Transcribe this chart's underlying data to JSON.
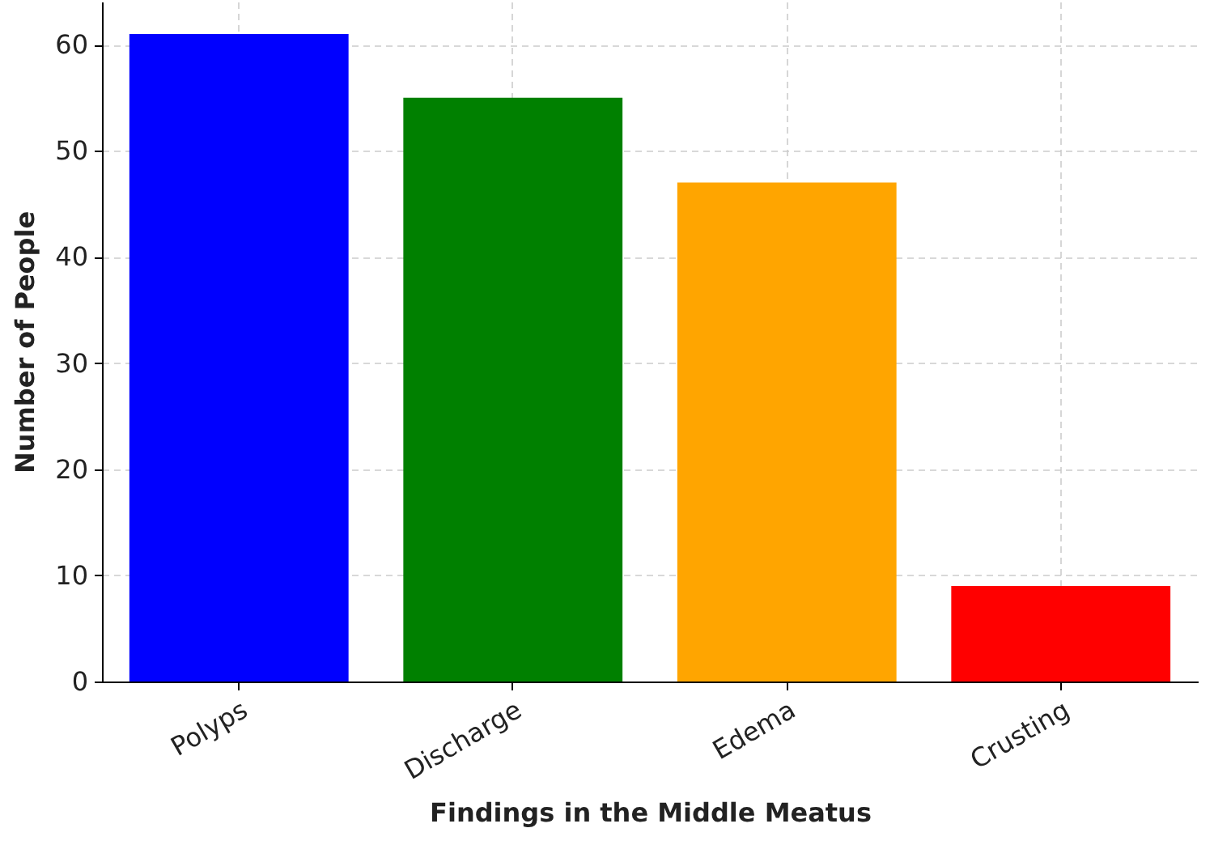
{
  "chart_data": {
    "type": "bar",
    "xlabel": "Findings in the Middle Meatus",
    "ylabel": "Number of People",
    "categories": [
      "Polyps",
      "Discharge",
      "Edema",
      "Crusting"
    ],
    "values": [
      61,
      55,
      47,
      9
    ],
    "colors": [
      "#0000ff",
      "#008000",
      "#ffa500",
      "#ff0000"
    ],
    "ylim": [
      0,
      64.05
    ],
    "yticks": [
      0,
      10,
      20,
      30,
      40,
      50,
      60
    ],
    "grid": true
  }
}
